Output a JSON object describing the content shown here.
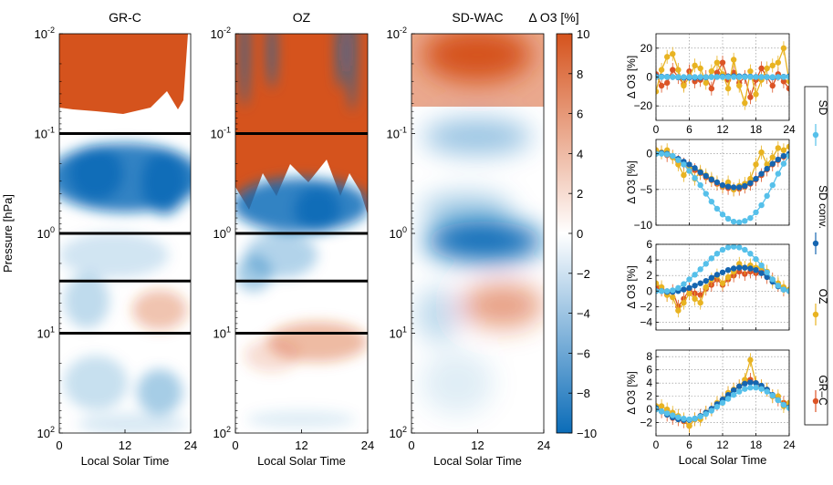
{
  "chart_data": [
    {
      "type": "heatmap",
      "panels": [
        {
          "title": "GR-C",
          "has_reference_lines": true
        },
        {
          "title": "OZ",
          "has_reference_lines": true
        },
        {
          "title": "SD-WAC",
          "has_reference_lines": false
        }
      ],
      "xlabel": "Local Solar Time",
      "ylabel": "Pressure [hPa]",
      "x_ticks": [
        "0",
        "12",
        "24"
      ],
      "xlim": [
        0,
        24
      ],
      "ylim": [
        100,
        0.01
      ],
      "yscale": "log",
      "y_ticks": [
        {
          "base": "10",
          "exp": "-2"
        },
        {
          "base": "10",
          "exp": "-1"
        },
        {
          "base": "10",
          "exp": "0"
        },
        {
          "base": "10",
          "exp": "1"
        },
        {
          "base": "10",
          "exp": "2"
        }
      ],
      "reference_pressures_hpa": [
        0.1,
        1,
        3,
        10
      ],
      "colorbar": {
        "label": "Δ O3 [%]",
        "ticks": [
          "10",
          "8",
          "6",
          "4",
          "2",
          "0",
          "−2",
          "−4",
          "−6",
          "−8",
          "−10"
        ],
        "range": [
          -10,
          10
        ],
        "colors": {
          "max": "#d5531d",
          "zero": "#ffffff",
          "min": "#0b6cb8"
        }
      }
    },
    {
      "type": "line",
      "x": [
        0,
        1,
        2,
        3,
        4,
        5,
        6,
        7,
        8,
        9,
        10,
        11,
        12,
        13,
        14,
        15,
        16,
        17,
        18,
        19,
        20,
        21,
        22,
        23,
        24
      ],
      "xlabel": "Local Solar Time",
      "x_ticks": [
        "0",
        "6",
        "12",
        "18",
        "24"
      ],
      "ylabel": "Δ O3 [%]",
      "grid": true,
      "legend_placement": "right",
      "legend": [
        {
          "name": "SD",
          "color": "#56c0ea"
        },
        {
          "name": "SD conv.",
          "color": "#1565b0"
        },
        {
          "name": "OZ",
          "color": "#e8b321"
        },
        {
          "name": "GR–C",
          "color": "#dc5426"
        }
      ],
      "panels": [
        {
          "ylim": [
            -30,
            30
          ],
          "y_ticks": [
            "20",
            "0",
            "−20"
          ],
          "series": [
            {
              "name": "SD",
              "values": [
                0,
                0,
                0,
                0,
                0,
                0,
                0,
                0,
                0,
                0,
                0,
                0,
                0,
                0,
                0,
                0,
                0,
                0,
                0,
                0,
                0,
                0,
                0,
                0,
                0
              ]
            },
            {
              "name": "SD conv.",
              "values": [
                0.5,
                0.3,
                0.2,
                0,
                -0.2,
                -0.4,
                -0.5,
                -0.5,
                -0.4,
                -0.2,
                0,
                0.2,
                0.3,
                0.4,
                0.5,
                0.5,
                0.4,
                0.3,
                0.1,
                0,
                -0.1,
                -0.2,
                0,
                0.2,
                0.4
              ]
            },
            {
              "name": "OZ",
              "values": [
                -10,
                5,
                14,
                16,
                5,
                -6,
                0,
                8,
                6,
                -4,
                4,
                10,
                2,
                -8,
                12,
                -6,
                -18,
                4,
                -12,
                -2,
                6,
                8,
                10,
                20,
                -3
              ]
            },
            {
              "name": "GR–C",
              "values": [
                2,
                -6,
                -4,
                5,
                0,
                -5,
                4,
                -3,
                -2,
                0,
                -8,
                3,
                10,
                -2,
                3,
                -4,
                0,
                -14,
                -2,
                6,
                0,
                -6,
                2,
                -3,
                -8
              ]
            }
          ]
        },
        {
          "ylim": [
            -10,
            2
          ],
          "y_ticks": [
            "0",
            "−5",
            "−10"
          ],
          "series": [
            {
              "name": "SD",
              "values": [
                0,
                0,
                -0.1,
                -0.3,
                -0.9,
                -1.5,
                -2.4,
                -3.4,
                -4.4,
                -5.6,
                -6.7,
                -7.7,
                -8.5,
                -9.1,
                -9.5,
                -9.6,
                -9.4,
                -9,
                -8.2,
                -7.2,
                -5.9,
                -4.4,
                -2.8,
                -1.4,
                -0.3
              ]
            },
            {
              "name": "SD conv.",
              "values": [
                0,
                0.1,
                0,
                -0.3,
                -0.7,
                -1.1,
                -1.5,
                -2,
                -2.6,
                -3.1,
                -3.6,
                -4,
                -4.4,
                -4.6,
                -4.7,
                -4.7,
                -4.5,
                -4.1,
                -3.5,
                -2.8,
                -2.1,
                -1.4,
                -0.8,
                -0.3,
                0
              ]
            },
            {
              "name": "OZ",
              "values": [
                0.5,
                0.2,
                0.5,
                -0.5,
                -1.5,
                -3,
                -2,
                -3.5,
                -2.5,
                -3,
                -3.5,
                -4,
                -4.5,
                -4,
                -5,
                -4.5,
                -4.2,
                -3.5,
                -1.5,
                0.2,
                -1.5,
                -0.5,
                0.8,
                0.5,
                1
              ]
            },
            {
              "name": "GR–C",
              "values": [
                0.5,
                0.2,
                -0.2,
                -0.4,
                -1.1,
                -1.5,
                -1.8,
                -2.3,
                -2.7,
                -3.3,
                -3.7,
                -4.2,
                -4.6,
                -4.8,
                -5,
                -4.9,
                -4.6,
                -4.2,
                -3.6,
                -3,
                -2.2,
                -1.5,
                -0.9,
                -0.4,
                -0.1
              ]
            }
          ]
        },
        {
          "ylim": [
            -5,
            6
          ],
          "y_ticks": [
            "6",
            "4",
            "2",
            "0",
            "−2",
            "−4"
          ],
          "series": [
            {
              "name": "SD",
              "values": [
                0,
                0,
                0,
                0.1,
                0.4,
                0.9,
                1.5,
                2.1,
                2.8,
                3.5,
                4.2,
                4.8,
                5.3,
                5.6,
                5.7,
                5.6,
                5.3,
                4.8,
                4.1,
                3.3,
                2.4,
                1.5,
                0.7,
                0.2,
                0
              ]
            },
            {
              "name": "SD conv.",
              "values": [
                0,
                0,
                -0.1,
                -0.1,
                0,
                0.2,
                0.4,
                0.7,
                1,
                1.3,
                1.7,
                2.1,
                2.4,
                2.7,
                2.9,
                3,
                3,
                2.9,
                2.7,
                2.3,
                1.8,
                1.2,
                0.6,
                0.2,
                0
              ]
            },
            {
              "name": "OZ",
              "values": [
                1,
                0.5,
                -0.5,
                -0.8,
                -2.5,
                -1.5,
                -0.3,
                -1,
                -1.5,
                0.5,
                1.5,
                2,
                1,
                1.8,
                2.5,
                3.5,
                3,
                3.3,
                3,
                3,
                2.5,
                1.2,
                1,
                0.5,
                0.2
              ]
            },
            {
              "name": "GR–C",
              "values": [
                0.5,
                0.2,
                -0.5,
                0,
                -2,
                -1,
                0.2,
                -0.3,
                -0.5,
                0.3,
                0.8,
                1.5,
                0.8,
                1.5,
                2,
                2.5,
                2.2,
                2.5,
                2.3,
                2.5,
                1.8,
                1.5,
                0.8,
                0.2,
                0
              ]
            }
          ]
        },
        {
          "ylim": [
            -4,
            9
          ],
          "y_ticks": [
            "8",
            "6",
            "4",
            "2",
            "0",
            "−2"
          ],
          "series": [
            {
              "name": "SD",
              "values": [
                0,
                -0.3,
                -0.6,
                -0.9,
                -1.2,
                -1.4,
                -1.5,
                -1.4,
                -1.1,
                -0.7,
                -0.2,
                0.4,
                1,
                1.6,
                2.2,
                2.7,
                3.1,
                3.3,
                3.3,
                3.1,
                2.7,
                2.1,
                1.4,
                0.7,
                0.2
              ]
            },
            {
              "name": "SD conv.",
              "values": [
                0.2,
                -0.3,
                -0.8,
                -1.2,
                -1.5,
                -1.6,
                -1.6,
                -1.4,
                -1,
                -0.5,
                0.1,
                0.8,
                1.5,
                2.2,
                2.9,
                3.5,
                3.9,
                4.1,
                4,
                3.6,
                3,
                2.2,
                1.4,
                0.7,
                0.3
              ]
            },
            {
              "name": "OZ",
              "values": [
                0.5,
                0.5,
                0,
                -0.5,
                -1,
                -1.5,
                -2.5,
                -1.5,
                -1.5,
                -0.5,
                0,
                1,
                1.5,
                2.5,
                3,
                3.5,
                4.5,
                7.5,
                4,
                3.5,
                3,
                2,
                2,
                0.5,
                1
              ]
            },
            {
              "name": "GR–C",
              "values": [
                0.5,
                -0.3,
                -0.8,
                -1.3,
                -1.5,
                -1.8,
                -2.5,
                -1.5,
                -1,
                -0.5,
                0,
                0.8,
                1.5,
                2.5,
                3,
                3.5,
                4,
                4.5,
                4,
                3.5,
                3,
                2,
                1.5,
                1,
                0.5
              ]
            }
          ]
        }
      ]
    }
  ]
}
